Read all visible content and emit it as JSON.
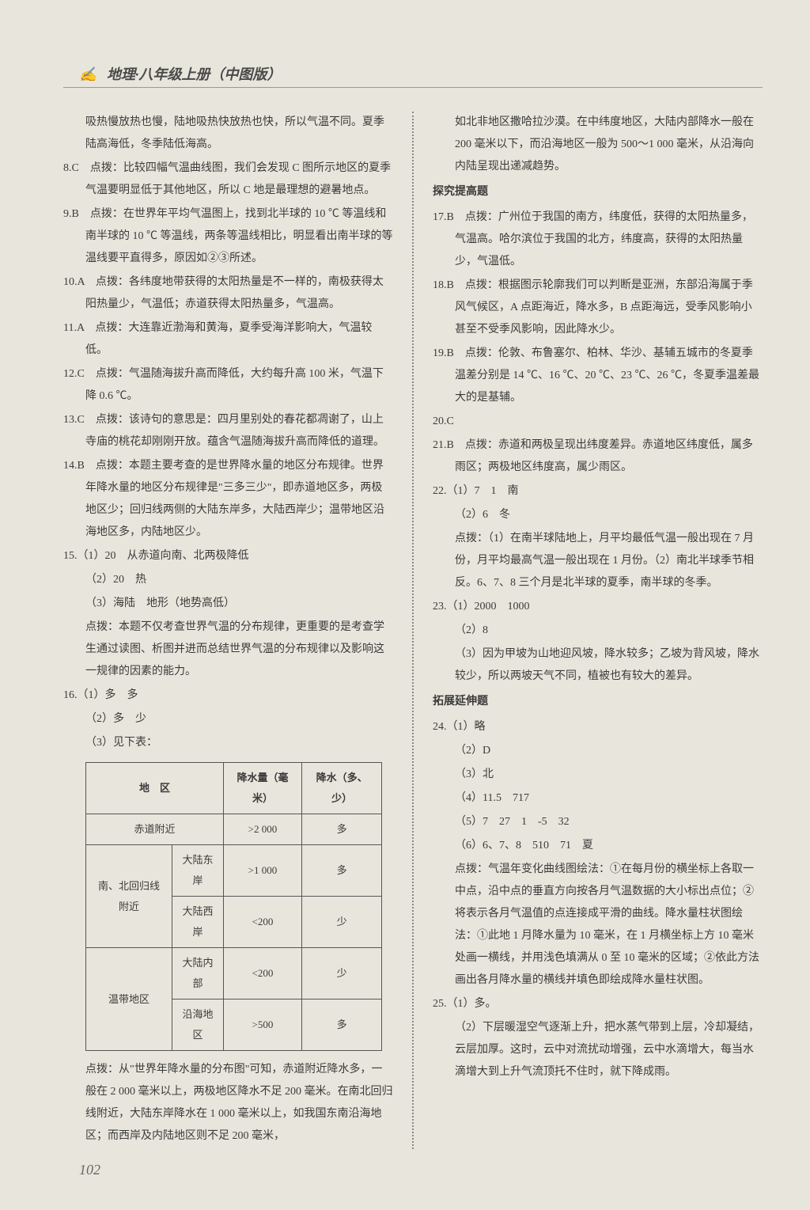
{
  "header": "地理·八年级上册（中图版）",
  "pageNumber": "102",
  "col1": {
    "intro1": "吸热慢放热也慢，陆地吸热快放热也快，所以气温不同。夏季陆高海低，冬季陆低海高。",
    "q8": "8.C　点拨：比较四幅气温曲线图，我们会发现 C 图所示地区的夏季气温要明显低于其他地区，所以 C 地是最理想的避暑地点。",
    "q9": "9.B　点拨：在世界年平均气温图上，找到北半球的 10 ℃ 等温线和南半球的 10 ℃ 等温线，两条等温线相比，明显看出南半球的等温线要平直得多，原因如②③所述。",
    "q10": "10.A　点拨：各纬度地带获得的太阳热量是不一样的，南极获得太阳热量少，气温低；赤道获得太阳热量多，气温高。",
    "q11": "11.A　点拨：大连靠近渤海和黄海，夏季受海洋影响大，气温较低。",
    "q12": "12.C　点拨：气温随海拔升高而降低，大约每升高 100 米，气温下降 0.6 ℃。",
    "q13": "13.C　点拨：该诗句的意思是：四月里别处的春花都凋谢了，山上寺庙的桃花却刚刚开放。蕴含气温随海拔升高而降低的道理。",
    "q14": "14.B　点拨：本题主要考查的是世界降水量的地区分布规律。世界年降水量的地区分布规律是\"三多三少\"，即赤道地区多，两极地区少；回归线两侧的大陆东岸多，大陆西岸少；温带地区沿海地区多，内陆地区少。",
    "q15": "15.（1）20　从赤道向南、北两极降低",
    "q15_2": "（2）20　热",
    "q15_3": "（3）海陆　地形（地势高低）",
    "q15_n": "点拨：本题不仅考查世界气温的分布规律，更重要的是考查学生通过读图、析图并进而总结世界气温的分布规律以及影响这一规律的因素的能力。",
    "q16": "16.（1）多　多",
    "q16_2": "（2）多　少",
    "q16_3": "（3）见下表：",
    "q16_n": "点拨：从\"世界年降水量的分布图\"可知，赤道附近降水多，一般在 2 000 毫米以上，两极地区降水不足 200 毫米。在南北回归线附近，大陆东岸降水在 1 000 毫米以上，如我国东南沿海地区；而西岸及内陆地区则不足 200 毫米，"
  },
  "table": {
    "h1": "地　区",
    "h2": "降水量（毫米）",
    "h3": "降水（多、少）",
    "r1c1": "赤道附近",
    "r1c2": ">2 000",
    "r1c3": "多",
    "r2a": "南、北回归线附近",
    "r2c1": "大陆东岸",
    "r2c2": ">1 000",
    "r2c3": "多",
    "r3c1": "大陆西岸",
    "r3c2": "<200",
    "r3c3": "少",
    "r4a": "温带地区",
    "r4c1": "大陆内部",
    "r4c2": "<200",
    "r4c3": "少",
    "r5c1": "沿海地区",
    "r5c2": ">500",
    "r5c3": "多"
  },
  "col2": {
    "intro": "如北非地区撒哈拉沙漠。在中纬度地区，大陆内部降水一般在 200 毫米以下，而沿海地区一般为 500～1 000 毫米，从沿海向内陆呈现出递减趋势。",
    "sec1": "探究提高题",
    "q17": "17.B　点拨：广州位于我国的南方，纬度低，获得的太阳热量多，气温高。哈尔滨位于我国的北方，纬度高，获得的太阳热量少，气温低。",
    "q18": "18.B　点拨：根据图示轮廓我们可以判断是亚洲，东部沿海属于季风气候区，A 点距海近，降水多，B 点距海远，受季风影响小甚至不受季风影响，因此降水少。",
    "q19": "19.B　点拨：伦敦、布鲁塞尔、柏林、华沙、基辅五城市的冬夏季温差分别是 14 ℃、16 ℃、20 ℃、23 ℃、26 ℃，冬夏季温差最大的是基辅。",
    "q20": "20.C",
    "q21": "21.B　点拨：赤道和两极呈现出纬度差异。赤道地区纬度低，属多雨区；两极地区纬度高，属少雨区。",
    "q22": "22.（1）7　1　南",
    "q22_2": "（2）6　冬",
    "q22_n": "点拨：（1）在南半球陆地上，月平均最低气温一般出现在 7 月份，月平均最高气温一般出现在 1 月份。（2）南北半球季节相反。6、7、8 三个月是北半球的夏季，南半球的冬季。",
    "q23": "23.（1）2000　1000",
    "q23_2": "（2）8",
    "q23_3": "（3）因为甲坡为山地迎风坡，降水较多；乙坡为背风坡，降水较少，所以两坡天气不同，植被也有较大的差异。",
    "sec2": "拓展延伸题",
    "q24": "24.（1）略",
    "q24_2": "（2）D",
    "q24_3": "（3）北",
    "q24_4": "（4）11.5　717",
    "q24_5": "（5）7　27　1　-5　32",
    "q24_6": "（6）6、7、8　510　71　夏",
    "q24_n": "点拨：气温年变化曲线图绘法：①在每月份的横坐标上各取一中点，沿中点的垂直方向按各月气温数据的大小标出点位；②将表示各月气温值的点连接成平滑的曲线。降水量柱状图绘法：①此地 1 月降水量为 10 毫米，在 1 月横坐标上方 10 毫米处画一横线，并用浅色填满从 0 至 10 毫米的区域；②依此方法画出各月降水量的横线并填色即绘成降水量柱状图。",
    "q25": "25.（1）多。",
    "q25_2": "（2）下层暖湿空气逐渐上升，把水蒸气带到上层，冷却凝结，云层加厚。这时，云中对流扰动增强，云中水滴增大，每当水滴增大到上升气流顶托不住时，就下降成雨。"
  }
}
